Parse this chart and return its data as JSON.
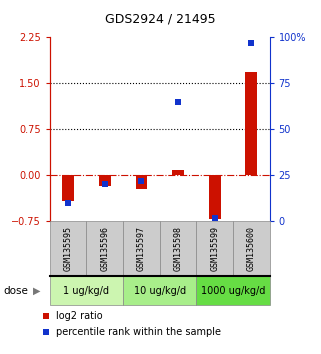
{
  "title": "GDS2924 / 21495",
  "samples": [
    "GSM135595",
    "GSM135596",
    "GSM135597",
    "GSM135598",
    "GSM135599",
    "GSM135600"
  ],
  "log2_ratio": [
    -0.42,
    -0.18,
    -0.22,
    0.08,
    -0.72,
    1.68
  ],
  "percentile_rank": [
    10,
    20,
    22,
    65,
    2,
    97
  ],
  "left_yticks": [
    -0.75,
    0,
    0.75,
    1.5,
    2.25
  ],
  "right_ytick_vals": [
    0,
    25,
    50,
    75,
    100
  ],
  "right_ytick_labels": [
    "0",
    "25",
    "50",
    "75",
    "100%"
  ],
  "left_ylim": [
    -0.75,
    2.25
  ],
  "right_ylim": [
    0,
    100
  ],
  "hline_values": [
    0.75,
    1.5
  ],
  "zero_line": 0,
  "dose_groups": [
    {
      "label": "1 ug/kg/d",
      "samples": [
        0,
        1
      ],
      "color": "#ccf5b0"
    },
    {
      "label": "10 ug/kg/d",
      "samples": [
        2,
        3
      ],
      "color": "#a8ee8a"
    },
    {
      "label": "1000 ug/kg/d",
      "samples": [
        4,
        5
      ],
      "color": "#66dd44"
    }
  ],
  "bar_color": "#cc1100",
  "square_color": "#1133cc",
  "left_axis_color": "#cc1100",
  "right_axis_color": "#1133cc",
  "bar_width": 0.32,
  "square_size": 25,
  "legend_red_label": "log2 ratio",
  "legend_blue_label": "percentile rank within the sample",
  "dose_label": "dose"
}
